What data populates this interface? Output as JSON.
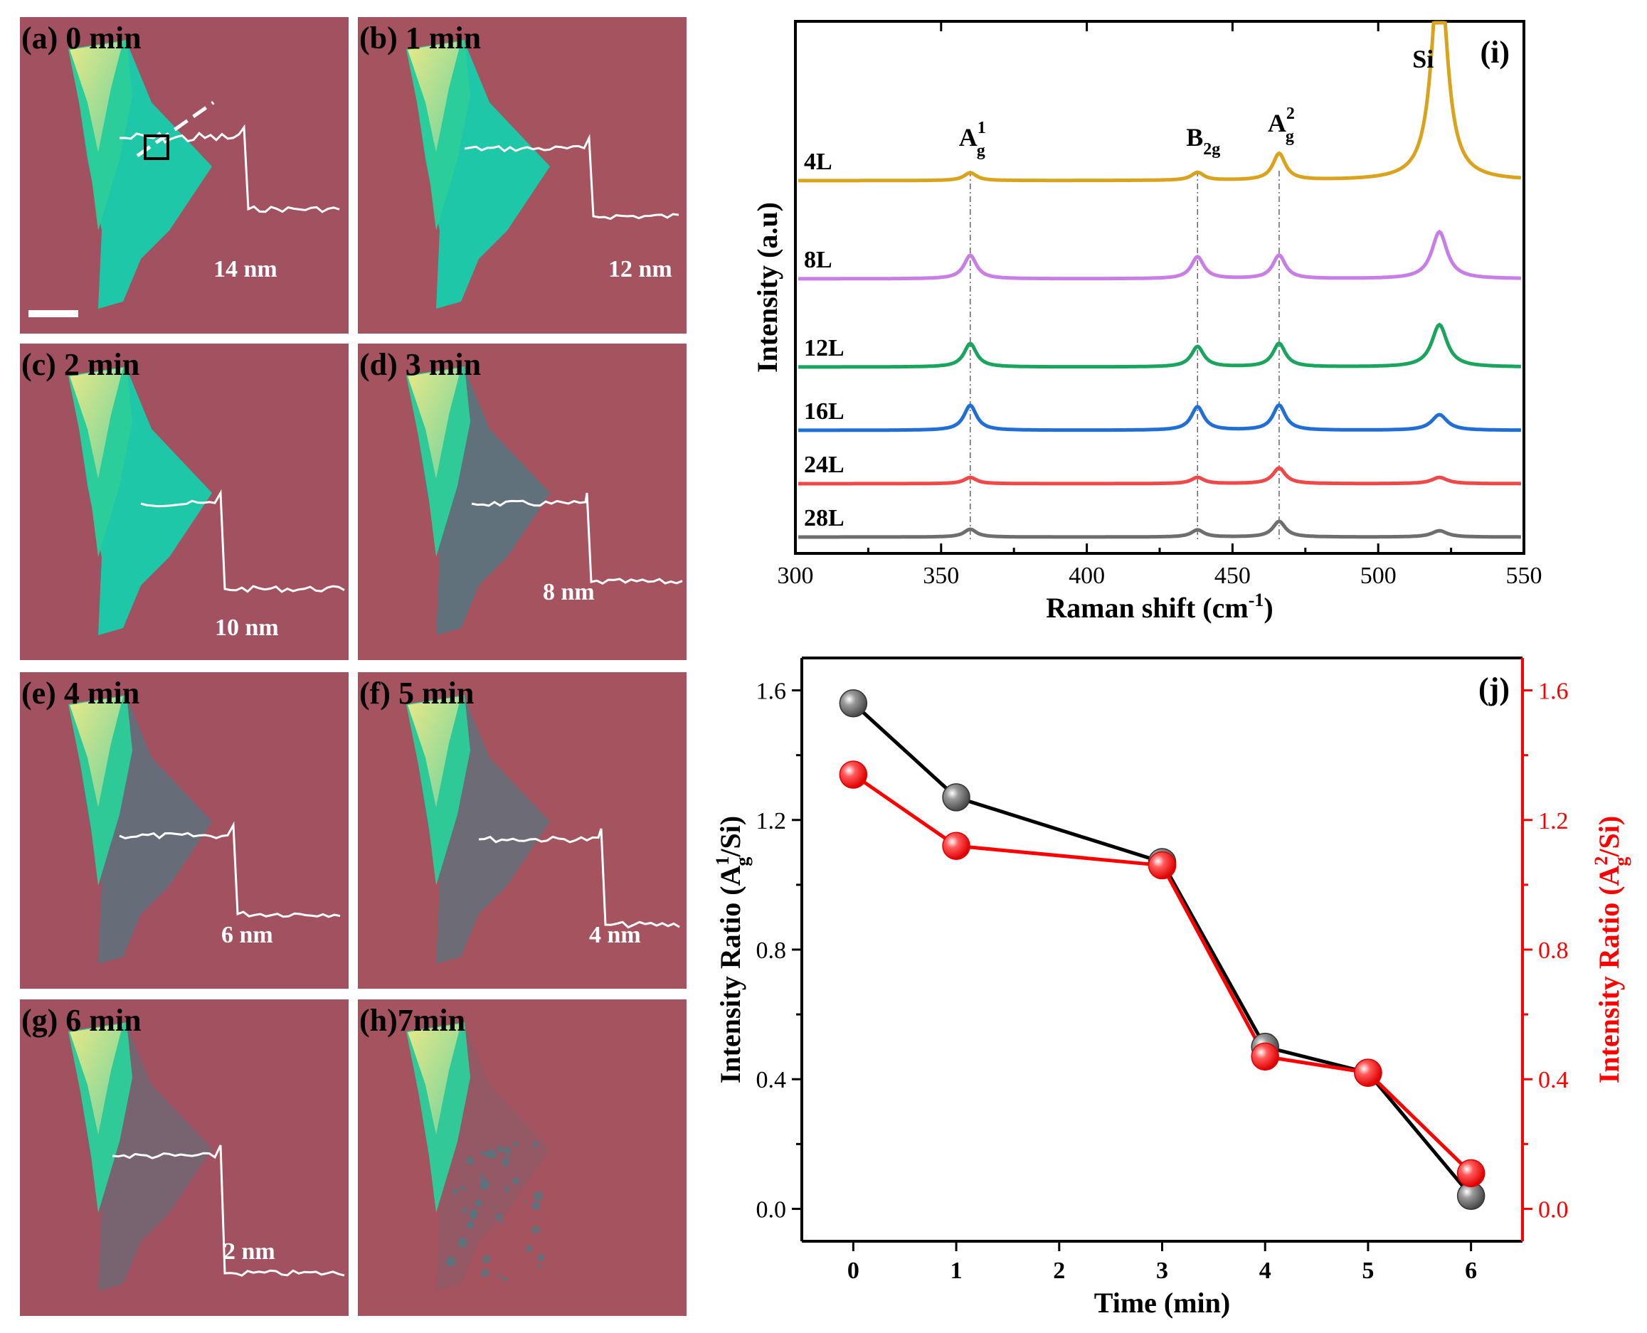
{
  "panels": [
    {
      "label": "(a) 0 min",
      "thickness": "14 nm",
      "flake_stage": 0
    },
    {
      "label": "(b) 1 min",
      "thickness": "12 nm",
      "flake_stage": 1
    },
    {
      "label": "(c) 2 min",
      "thickness": "10 nm",
      "flake_stage": 2
    },
    {
      "label": "(d) 3 min",
      "thickness": "8 nm",
      "flake_stage": 3
    },
    {
      "label": "(e) 4 min",
      "thickness": "6 nm",
      "flake_stage": 4
    },
    {
      "label": "(f) 5 min",
      "thickness": "4 nm",
      "flake_stage": 5
    },
    {
      "label": "(g) 6 min",
      "thickness": "2 nm",
      "flake_stage": 6
    },
    {
      "label": "(h)7min",
      "thickness": "",
      "flake_stage": 7
    }
  ],
  "colors": {
    "substrate": "#a3505f",
    "flake_thick": "#1fc7a9",
    "flake_yellow": "#e6e27a",
    "profile": "#ffffff"
  },
  "chart_data": [
    {
      "type": "line",
      "panel_label": "(i)",
      "xlabel": "Raman shift (cm",
      "xlabel_sup": "-1",
      "xlabel_tail": ")",
      "ylabel": "Intensity (a.u)",
      "xlim": [
        300,
        550
      ],
      "xticks": [
        300,
        350,
        400,
        450,
        500,
        550
      ],
      "peak_positions": [
        360,
        438,
        466,
        521
      ],
      "peak_labels": [
        {
          "main": "A",
          "sup": "1",
          "sub": "g",
          "x": 360
        },
        {
          "main": "B",
          "sup": "",
          "sub": "2g",
          "x": 438
        },
        {
          "main": "A",
          "sup": "2",
          "sub": "g",
          "x": 466
        },
        {
          "main": "Si",
          "sup": "",
          "sub": "",
          "x": 521
        }
      ],
      "series": [
        {
          "name": "4L",
          "color": "#d9a31c",
          "heights": [
            0.5,
            0.5,
            1.7,
            14.0
          ]
        },
        {
          "name": "8L",
          "color": "#c77ee6",
          "heights": [
            1.5,
            1.4,
            1.5,
            3.0
          ]
        },
        {
          "name": "12L",
          "color": "#1aa55f",
          "heights": [
            1.5,
            1.3,
            1.5,
            2.7
          ]
        },
        {
          "name": "16L",
          "color": "#1f6fd6",
          "heights": [
            1.6,
            1.5,
            1.6,
            1.0
          ]
        },
        {
          "name": "24L",
          "color": "#f04848",
          "heights": [
            0.4,
            0.4,
            1.0,
            0.4
          ]
        },
        {
          "name": "28L",
          "color": "#6e6e6e",
          "heights": [
            0.5,
            0.45,
            1.0,
            0.4
          ]
        }
      ]
    },
    {
      "type": "scatter",
      "panel_label": "(j)",
      "xlabel": "Time (min)",
      "ylabel_left_main": "Intensity Ratio (A",
      "ylabel_left_sup": "1",
      "ylabel_left_sub": "g",
      "ylabel_left_tail": "/Si)",
      "ylabel_right_main": "Intensity Ratio (A",
      "ylabel_right_sup": "2",
      "ylabel_right_sub": "g",
      "ylabel_right_tail": "/Si)",
      "xlim": [
        -0.5,
        6.5
      ],
      "xticks": [
        0,
        1,
        2,
        3,
        4,
        5,
        6
      ],
      "ylim": [
        -0.1,
        1.7
      ],
      "yticks": [
        0.0,
        0.4,
        0.8,
        1.2,
        1.6
      ],
      "ytick_labels": [
        "0.0",
        "0.4",
        "0.8",
        "1.2",
        "1.6"
      ],
      "series": [
        {
          "name": "A1g/Si",
          "color": "#000000",
          "marker": "#6b6b6b",
          "x": [
            0,
            1,
            3,
            4,
            5,
            6
          ],
          "y": [
            1.56,
            1.27,
            1.07,
            0.5,
            0.42,
            0.04
          ]
        },
        {
          "name": "A2g/Si",
          "color": "#ff0000",
          "marker": "#ff2a2a",
          "x": [
            0,
            1,
            3,
            4,
            5,
            6
          ],
          "y": [
            1.34,
            1.12,
            1.06,
            0.47,
            0.42,
            0.11
          ]
        }
      ]
    }
  ]
}
